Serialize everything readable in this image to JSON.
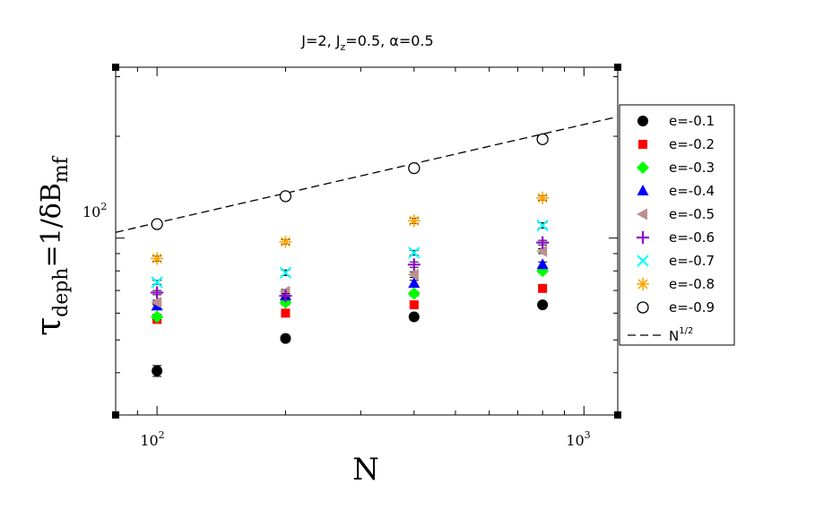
{
  "chart_data": {
    "type": "scatter",
    "title": {
      "parts": [
        "J=2, J",
        "z",
        "=0.5, α=0.5"
      ]
    },
    "xlabel": "N",
    "ylabel": {
      "tau": "τ",
      "tau_sub": "deph",
      "mid": "=1/δB",
      "B_sub": "mf"
    },
    "x_scale": "log",
    "y_scale": "log",
    "xlim": [
      80,
      1200
    ],
    "ylim": [
      30,
      320
    ],
    "x_ticks": [
      {
        "value": 100,
        "base": "10",
        "exp": "2"
      },
      {
        "value": 1000,
        "base": "10",
        "exp": "3"
      }
    ],
    "y_ticks": [
      {
        "value": 100,
        "base": "10",
        "exp": "2"
      }
    ],
    "legend_position": "right",
    "x": [
      100,
      200,
      400,
      800
    ],
    "series": [
      {
        "name": "e=-0.1",
        "marker": "circle-filled",
        "color": "#000000",
        "values": [
          40.5,
          50.5,
          58.5,
          63.5
        ],
        "err": [
          1.5,
          1.0,
          1.0,
          1.0
        ]
      },
      {
        "name": "e=-0.2",
        "marker": "square",
        "color": "#ff0000",
        "values": [
          57.5,
          60.0,
          63.5,
          71.0
        ],
        "err": [
          1.0,
          1.0,
          1.0,
          1.0
        ]
      },
      {
        "name": "e=-0.3",
        "marker": "diamond",
        "color": "#00ff00",
        "values": [
          58.5,
          64.5,
          68.5,
          80.0
        ],
        "err": [
          1.0,
          1.0,
          1.0,
          1.0
        ]
      },
      {
        "name": "e=-0.4",
        "marker": "triangle-up",
        "color": "#0000ff",
        "values": [
          63.0,
          67.5,
          73.5,
          83.5
        ],
        "err": [
          1.0,
          1.0,
          1.5,
          1.5
        ]
      },
      {
        "name": "e=-0.5",
        "marker": "triangle-left",
        "color": "#bc8f8f",
        "values": [
          64.5,
          69.5,
          78.0,
          91.5
        ],
        "err": [
          1.0,
          1.0,
          1.5,
          1.5
        ]
      },
      {
        "name": "e=-0.6",
        "marker": "plus",
        "color": "#9400d3",
        "values": [
          69.0,
          67.5,
          83.5,
          97.0
        ],
        "err": [
          1.0,
          1.0,
          1.5,
          1.5
        ]
      },
      {
        "name": "e=-0.7",
        "marker": "x",
        "color": "#00ffff",
        "values": [
          74.0,
          79.0,
          90.5,
          109.0
        ],
        "err": [
          1.0,
          1.5,
          1.5,
          2.0
        ]
      },
      {
        "name": "e=-0.8",
        "marker": "asterisk",
        "color": "#ffa500",
        "values": [
          87.0,
          97.5,
          112.5,
          131.5
        ],
        "err": [
          1.5,
          1.5,
          2.0,
          2.0
        ]
      },
      {
        "name": "e=-0.9",
        "marker": "circle-open",
        "color": "#000000",
        "values": [
          110.0,
          133.0,
          161.0,
          196.0
        ],
        "err": [
          1.5,
          2.0,
          2.0,
          2.5
        ]
      }
    ],
    "fit_line": {
      "name": "N",
      "name_sup": "1/2",
      "style": "dashed",
      "color": "#000000",
      "x": [
        80,
        1200
      ],
      "y": [
        104.0,
        228.5
      ]
    }
  }
}
